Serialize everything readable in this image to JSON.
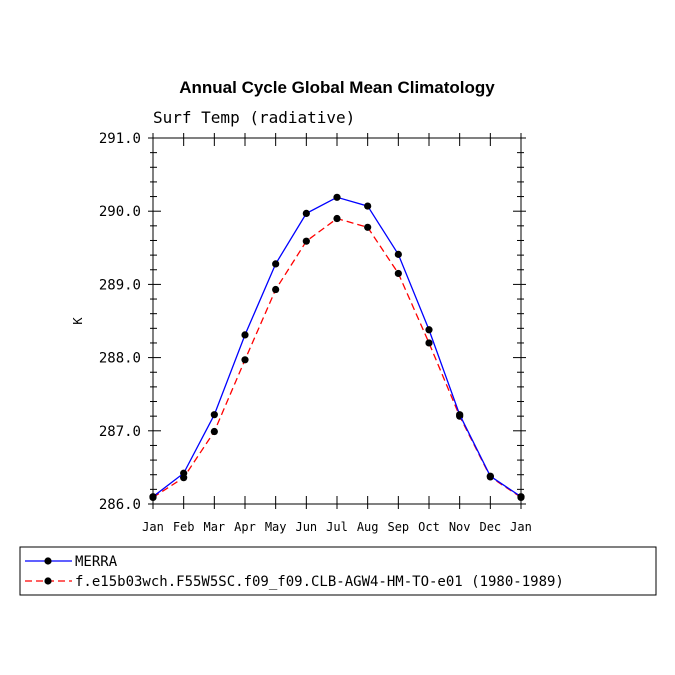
{
  "chart_data": {
    "type": "line",
    "title": "Annual Cycle Global Mean Climatology",
    "subtitle": "Surf Temp (radiative)",
    "xlabel": "",
    "ylabel": "K",
    "categories": [
      "Jan",
      "Feb",
      "Mar",
      "Apr",
      "May",
      "Jun",
      "Jul",
      "Aug",
      "Sep",
      "Oct",
      "Nov",
      "Dec",
      "Jan"
    ],
    "ylim": [
      286.0,
      291.0
    ],
    "yticks": [
      "286.0",
      "287.0",
      "288.0",
      "289.0",
      "290.0",
      "291.0"
    ],
    "ytick_values": [
      286.0,
      287.0,
      288.0,
      289.0,
      290.0,
      291.0
    ],
    "series": [
      {
        "name": "MERRA",
        "color": "#0000ff",
        "dash": "solid",
        "values": [
          286.1,
          286.42,
          287.22,
          288.31,
          289.28,
          289.97,
          290.19,
          290.07,
          289.41,
          288.38,
          287.22,
          286.38,
          286.1
        ]
      },
      {
        "name": "f.e15b03wch.F55W5SC.f09_f09.CLB-AGW4-HM-TO-e01 (1980-1989)",
        "color": "#ff0000",
        "dash": "dashed",
        "values": [
          286.09,
          286.36,
          286.99,
          287.97,
          288.93,
          289.59,
          289.9,
          289.78,
          289.15,
          288.2,
          287.2,
          286.37,
          286.09
        ]
      }
    ],
    "legend_position": "bottom"
  }
}
